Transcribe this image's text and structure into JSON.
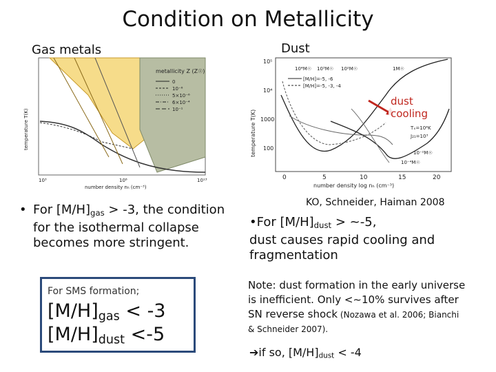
{
  "title": "Condition on Metallicity",
  "left_label": "Gas metals",
  "right_label": "Dust",
  "citation": "KO, Schneider, Haiman 2008",
  "left_fig": {
    "y_axis": "temperature T(K)",
    "x_axis": "number density nₕ (cm⁻³)",
    "x_ticks": [
      "10³",
      "10⁸",
      "10¹³"
    ],
    "legend_title": "metallicity Z (Z☉)",
    "legend_items": [
      "0",
      "10⁻⁶",
      "5×10⁻⁶",
      "6×10⁻⁴",
      "10⁻¹"
    ]
  },
  "right_fig": {
    "y_axis": "temperature T(K)",
    "x_axis": "number density log nₕ (cm⁻³)",
    "x_ticks": [
      "0",
      "5",
      "10",
      "15",
      "20"
    ],
    "y_ticks": [
      "10⁵",
      "10⁴",
      "1000",
      "100"
    ],
    "legend_items": [
      "[M/H]=-5, -6",
      "[M/H]=-5, -3, -4"
    ],
    "annotations": [
      "10⁴M☉",
      "10³M☉",
      "10²M☉",
      "1M☉",
      "Tₓ=10⁴K",
      "J₂₁=10³",
      "10⁻²M☉",
      "10⁻⁴M☉"
    ],
    "callout": "dust cooling"
  },
  "bullet1": {
    "prefix": "For [M/H]",
    "sub": "gas",
    "rest": " > -3,  the condition for the isothermal collapse becomes more stringent."
  },
  "box": {
    "heading": "For SMS formation;",
    "line1_a": "[M/H]",
    "line1_sub": "gas",
    "line1_b": " < -3",
    "line2_a": "[M/H]",
    "line2_sub": "dust",
    "line2_b": " <-5"
  },
  "bullet2": {
    "prefix": "•For [M/H]",
    "sub": "dust",
    "rest1": " > ~-5,",
    "rest2": "dust causes rapid cooling and fragmentation"
  },
  "note": {
    "line1": "Note: dust formation in the early universe",
    "line2": "is inefficient. Only <~10% survives after",
    "line3a": "SN reverse shock",
    "line3b": " (Nozawa et al. 2006; Bianchi",
    "line4": "& Schneider 2007)."
  },
  "final": {
    "prefix": "if so,  [M/H]",
    "sub": "dust",
    "rest": " < -4"
  }
}
